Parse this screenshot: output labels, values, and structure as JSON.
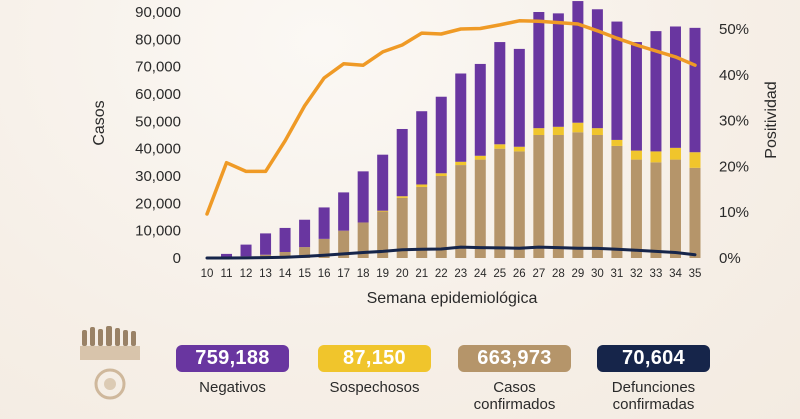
{
  "chart_data": {
    "type": "bar",
    "stacked": true,
    "xlabel": "Semana epidemiológica",
    "ylabel": "Casos",
    "y2label": "Positividad",
    "ylim": [
      0,
      90000
    ],
    "y2lim": [
      0,
      55
    ],
    "yticks": [
      "0",
      "10,000",
      "20,000",
      "30,000",
      "40,000",
      "50,000",
      "60,000",
      "70,000",
      "80,000",
      "90,000"
    ],
    "y2ticks": [
      "0%",
      "10%",
      "20%",
      "30%",
      "40%",
      "50%"
    ],
    "categories": [
      "10",
      "11",
      "12",
      "13",
      "14",
      "15",
      "16",
      "17",
      "18",
      "19",
      "20",
      "21",
      "22",
      "23",
      "24",
      "25",
      "26",
      "27",
      "28",
      "29",
      "30",
      "31",
      "32",
      "33",
      "34",
      "35"
    ],
    "series": [
      {
        "name": "Casos confirmados",
        "color": "#b5956a",
        "values": [
          0,
          300,
          600,
          1200,
          2200,
          4000,
          7000,
          10000,
          13000,
          17000,
          22000,
          26000,
          30000,
          34000,
          36000,
          40000,
          39000,
          45000,
          45000,
          46000,
          45000,
          41000,
          36000,
          35000,
          36000,
          33000
        ]
      },
      {
        "name": "Sospechosos",
        "color": "#f0c52c",
        "values": [
          0,
          0,
          0,
          0,
          0,
          0,
          0,
          0,
          0,
          300,
          600,
          900,
          1000,
          1200,
          1400,
          1600,
          1700,
          2500,
          3000,
          3500,
          2500,
          2200,
          3300,
          4000,
          4300,
          5700
        ]
      },
      {
        "name": "Negativos",
        "color": "#6936a0",
        "values": [
          0,
          1200,
          4300,
          7800,
          8800,
          10000,
          11500,
          14000,
          18700,
          20500,
          24600,
          26800,
          28000,
          32300,
          33600,
          37400,
          35800,
          42500,
          41500,
          44500,
          43500,
          43300,
          39700,
          44000,
          44400,
          45500
        ]
      }
    ],
    "lines": [
      {
        "name": "Positividad",
        "axis": "right",
        "color": "#ef9a26",
        "values": [
          9.6,
          20.8,
          18.9,
          18.9,
          25.6,
          33.2,
          39.3,
          42.4,
          42.1,
          45.0,
          46.5,
          49.1,
          48.9,
          50.0,
          50.1,
          50.9,
          51.8,
          51.7,
          51.4,
          51.1,
          49.6,
          48.0,
          46.5,
          45.2,
          43.9,
          42.1
        ]
      },
      {
        "name": "Defunciones",
        "axis": "left",
        "color": "#16254a",
        "values": [
          0,
          0,
          50,
          150,
          300,
          600,
          1000,
          1500,
          2000,
          2400,
          3000,
          3200,
          3300,
          4000,
          3800,
          3700,
          3600,
          4000,
          3800,
          3600,
          3500,
          3200,
          2800,
          2400,
          2000,
          1200
        ]
      }
    ]
  },
  "summary": [
    {
      "value": "759,188",
      "caption": "Negativos",
      "color": "#6936a0"
    },
    {
      "value": "87,150",
      "caption": "Sospechosos",
      "color": "#f0c52c"
    },
    {
      "value": "663,973",
      "caption": "Casos confirmados",
      "color": "#b5956a"
    },
    {
      "value": "70,604",
      "caption": "Defunciones confirmadas",
      "color": "#16254a"
    }
  ]
}
